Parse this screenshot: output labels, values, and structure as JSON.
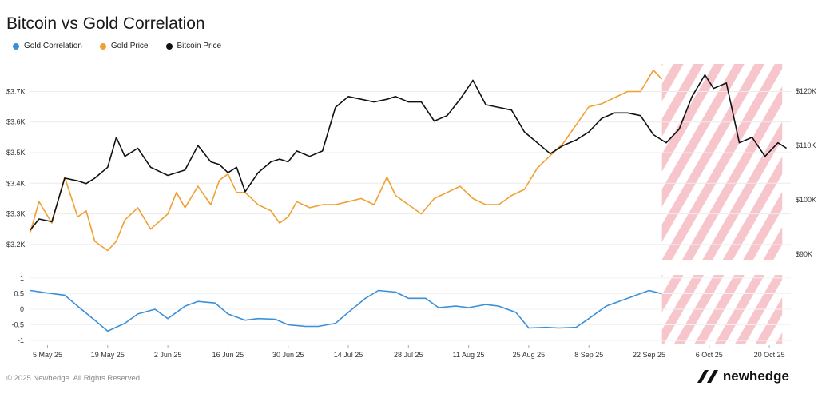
{
  "title": "Bitcoin vs Gold Correlation",
  "legend": [
    {
      "label": "Gold Correlation",
      "color": "#3a8fdb"
    },
    {
      "label": "Gold Price",
      "color": "#f0a030"
    },
    {
      "label": "Bitcoin Price",
      "color": "#111111"
    }
  ],
  "footer": {
    "copyright": "© 2025 Newhedge. All Rights Reserved.",
    "brand": "newhedge"
  },
  "chart_data": {
    "type": "line",
    "x_ticks": [
      "5 May 25",
      "19 May 25",
      "2 Jun 25",
      "16 Jun 25",
      "30 Jun 25",
      "14 Jul 25",
      "28 Jul 25",
      "11 Aug 25",
      "25 Aug 25",
      "8 Sep 25",
      "22 Sep 25",
      "6 Oct 25",
      "20 Oct 25"
    ],
    "left_axis": {
      "ticks": [
        "$3.2K",
        "$3.3K",
        "$3.4K",
        "$3.5K",
        "$3.6K",
        "$3.7K"
      ],
      "range": [
        3150,
        3790
      ]
    },
    "right_axis": {
      "ticks": [
        "$90K",
        "$100K",
        "$110K",
        "$120K"
      ],
      "range": [
        89000,
        125000
      ]
    },
    "corr_axis": {
      "ticks": [
        "1",
        "0.5",
        "0",
        "-0.5",
        "-1"
      ],
      "range": [
        -1.1,
        1.1
      ]
    },
    "forecast_region": {
      "start": "25 Sep 25",
      "end": "23 Oct 25",
      "color": "#f7c5cc"
    },
    "series": [
      {
        "name": "Gold Price",
        "axis": "left",
        "color": "#f0a030",
        "x": [
          "1 May 25",
          "3 May 25",
          "6 May 25",
          "9 May 25",
          "12 May 25",
          "14 May 25",
          "16 May 25",
          "19 May 25",
          "21 May 25",
          "23 May 25",
          "26 May 25",
          "29 May 25",
          "2 Jun 25",
          "4 Jun 25",
          "6 Jun 25",
          "9 Jun 25",
          "12 Jun 25",
          "14 Jun 25",
          "16 Jun 25",
          "18 Jun 25",
          "20 Jun 25",
          "23 Jun 25",
          "26 Jun 25",
          "28 Jun 25",
          "30 Jun 25",
          "2 Jul 25",
          "5 Jul 25",
          "8 Jul 25",
          "11 Jul 25",
          "14 Jul 25",
          "17 Jul 25",
          "20 Jul 25",
          "23 Jul 25",
          "25 Jul 25",
          "28 Jul 25",
          "31 Jul 25",
          "3 Aug 25",
          "6 Aug 25",
          "9 Aug 25",
          "12 Aug 25",
          "15 Aug 25",
          "18 Aug 25",
          "21 Aug 25",
          "24 Aug 25",
          "27 Aug 25",
          "30 Aug 25",
          "2 Sep 25",
          "5 Sep 25",
          "8 Sep 25",
          "11 Sep 25",
          "14 Sep 25",
          "17 Sep 25",
          "20 Sep 25",
          "23 Sep 25",
          "25 Sep 25"
        ],
        "values": [
          3240,
          3340,
          3270,
          3420,
          3290,
          3310,
          3210,
          3180,
          3210,
          3280,
          3320,
          3250,
          3300,
          3370,
          3320,
          3390,
          3330,
          3410,
          3430,
          3370,
          3370,
          3330,
          3310,
          3270,
          3290,
          3340,
          3320,
          3330,
          3330,
          3340,
          3350,
          3330,
          3420,
          3360,
          3330,
          3300,
          3350,
          3370,
          3390,
          3350,
          3330,
          3330,
          3360,
          3380,
          3450,
          3490,
          3530,
          3590,
          3650,
          3660,
          3680,
          3700,
          3700,
          3770,
          3740
        ]
      },
      {
        "name": "Bitcoin Price",
        "axis": "right",
        "color": "#111111",
        "x": [
          "1 May 25",
          "3 May 25",
          "6 May 25",
          "9 May 25",
          "12 May 25",
          "14 May 25",
          "16 May 25",
          "19 May 25",
          "21 May 25",
          "23 May 25",
          "26 May 25",
          "29 May 25",
          "2 Jun 25",
          "4 Jun 25",
          "6 Jun 25",
          "9 Jun 25",
          "12 Jun 25",
          "14 Jun 25",
          "16 Jun 25",
          "18 Jun 25",
          "20 Jun 25",
          "23 Jun 25",
          "26 Jun 25",
          "28 Jun 25",
          "30 Jun 25",
          "2 Jul 25",
          "5 Jul 25",
          "8 Jul 25",
          "11 Jul 25",
          "14 Jul 25",
          "17 Jul 25",
          "20 Jul 25",
          "23 Jul 25",
          "25 Jul 25",
          "28 Jul 25",
          "31 Jul 25",
          "3 Aug 25",
          "6 Aug 25",
          "9 Aug 25",
          "12 Aug 25",
          "15 Aug 25",
          "18 Aug 25",
          "21 Aug 25",
          "24 Aug 25",
          "27 Aug 25",
          "30 Aug 25",
          "2 Sep 25",
          "5 Sep 25",
          "8 Sep 25",
          "11 Sep 25",
          "14 Sep 25",
          "17 Sep 25",
          "20 Sep 25",
          "23 Sep 25",
          "26 Sep 25",
          "29 Sep 25",
          "2 Oct 25",
          "5 Oct 25",
          "7 Oct 25",
          "10 Oct 25",
          "13 Oct 25",
          "16 Oct 25",
          "19 Oct 25",
          "22 Oct 25",
          "24 Oct 25"
        ],
        "values": [
          94500,
          96500,
          96000,
          104000,
          103500,
          103000,
          104000,
          106000,
          111500,
          108000,
          109500,
          106000,
          104500,
          105000,
          105500,
          110000,
          107000,
          106500,
          105000,
          106000,
          101500,
          105000,
          107000,
          107500,
          107000,
          109000,
          108000,
          109000,
          117000,
          119000,
          118500,
          118000,
          118500,
          119000,
          118000,
          118000,
          114500,
          115500,
          118500,
          122000,
          117500,
          117000,
          116500,
          112500,
          110500,
          108500,
          110000,
          111000,
          112500,
          115000,
          116000,
          116000,
          115500,
          112000,
          110500,
          113000,
          119000,
          123000,
          120500,
          121500,
          110500,
          111500,
          108000,
          110500,
          109500
        ]
      },
      {
        "name": "Gold Correlation",
        "axis": "corr",
        "color": "#3a8fdb",
        "x": [
          "1 May 25",
          "5 May 25",
          "9 May 25",
          "12 May 25",
          "16 May 25",
          "19 May 25",
          "23 May 25",
          "26 May 25",
          "30 May 25",
          "2 Jun 25",
          "6 Jun 25",
          "9 Jun 25",
          "13 Jun 25",
          "16 Jun 25",
          "20 Jun 25",
          "23 Jun 25",
          "27 Jun 25",
          "30 Jun 25",
          "4 Jul 25",
          "7 Jul 25",
          "11 Jul 25",
          "14 Jul 25",
          "18 Jul 25",
          "21 Jul 25",
          "25 Jul 25",
          "28 Jul 25",
          "1 Aug 25",
          "4 Aug 25",
          "8 Aug 25",
          "11 Aug 25",
          "15 Aug 25",
          "18 Aug 25",
          "22 Aug 25",
          "25 Aug 25",
          "29 Aug 25",
          "1 Sep 25",
          "5 Sep 25",
          "8 Sep 25",
          "12 Sep 25",
          "15 Sep 25",
          "19 Sep 25",
          "22 Sep 25",
          "25 Sep 25"
        ],
        "values": [
          0.6,
          0.52,
          0.45,
          0.1,
          -0.35,
          -0.7,
          -0.45,
          -0.15,
          0.0,
          -0.3,
          0.1,
          0.25,
          0.2,
          -0.15,
          -0.35,
          -0.3,
          -0.32,
          -0.5,
          -0.55,
          -0.55,
          -0.45,
          -0.1,
          0.35,
          0.6,
          0.55,
          0.35,
          0.35,
          0.05,
          0.1,
          0.05,
          0.15,
          0.1,
          -0.1,
          -0.6,
          -0.58,
          -0.6,
          -0.58,
          -0.3,
          0.1,
          0.25,
          0.45,
          0.6,
          0.5
        ]
      }
    ]
  }
}
